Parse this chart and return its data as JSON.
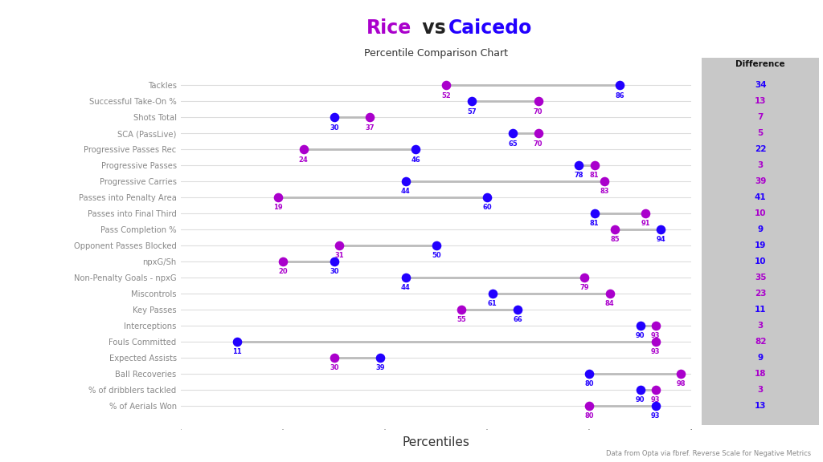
{
  "title_rice": "Rice",
  "title_vs": " vs ",
  "title_caicedo": "Caicedo",
  "subtitle": "Percentile Comparison Chart",
  "xlabel": "Percentiles",
  "footnote": "Data from Opta via fbref. Reverse Scale for Negative Metrics",
  "difference_label": "Difference",
  "categories": [
    "Tackles",
    "Successful Take-On %",
    "Shots Total",
    "SCA (PassLive)",
    "Progressive Passes Rec",
    "Progressive Passes",
    "Progressive Carries",
    "Passes into Penalty Area",
    "Passes into Final Third",
    "Pass Completion %",
    "Opponent Passes Blocked",
    "npxG/Sh",
    "Non-Penalty Goals - npxG",
    "Miscontrols",
    "Key Passes",
    "Interceptions",
    "Fouls Committed",
    "Expected Assists",
    "Ball Recoveries",
    "% of dribblers tackled",
    "% of Aerials Won"
  ],
  "rice_values": [
    86,
    57,
    30,
    65,
    46,
    78,
    44,
    60,
    81,
    94,
    50,
    30,
    44,
    61,
    66,
    90,
    11,
    39,
    80,
    90,
    93
  ],
  "caicedo_values": [
    52,
    70,
    37,
    70,
    24,
    81,
    83,
    19,
    91,
    85,
    31,
    20,
    79,
    84,
    55,
    93,
    93,
    30,
    98,
    93,
    80
  ],
  "differences": [
    34,
    13,
    7,
    5,
    22,
    3,
    39,
    41,
    10,
    9,
    19,
    10,
    35,
    23,
    11,
    3,
    82,
    9,
    18,
    3,
    13
  ],
  "diff_colors": [
    "blue",
    "purple",
    "purple",
    "purple",
    "blue",
    "purple",
    "purple",
    "blue",
    "purple",
    "blue",
    "blue",
    "blue",
    "purple",
    "purple",
    "blue",
    "purple",
    "purple",
    "blue",
    "purple",
    "purple",
    "blue"
  ],
  "rice_color": "#2200ff",
  "caicedo_color": "#aa00cc",
  "line_color": "#bbbbbb",
  "bg_color": "#ffffff",
  "plot_bg_color": "#ffffff",
  "diff_panel_color": "#c8c8c8",
  "title_rice_color": "#aa00cc",
  "title_caicedo_color": "#2200ff",
  "yticklabel_color": "#888888",
  "grid_color": "#dddddd"
}
